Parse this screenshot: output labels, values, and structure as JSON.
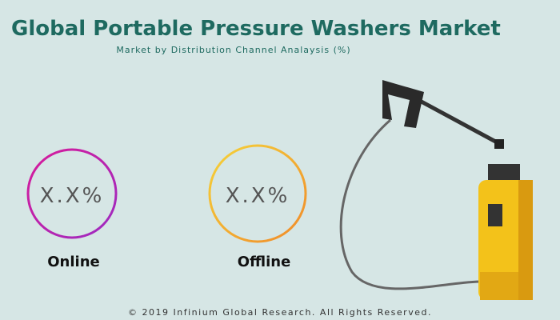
{
  "header": {
    "title": "Global Portable Pressure Washers Market",
    "subtitle": "Market by Distribution Channel Analaysis (%)"
  },
  "segments": [
    {
      "value_label": "X.X%",
      "label": "Online"
    },
    {
      "value_label": "X.X%",
      "label": "Offline"
    }
  ],
  "footer": "© 2019 Infinium Global Research. All Rights Reserved."
}
